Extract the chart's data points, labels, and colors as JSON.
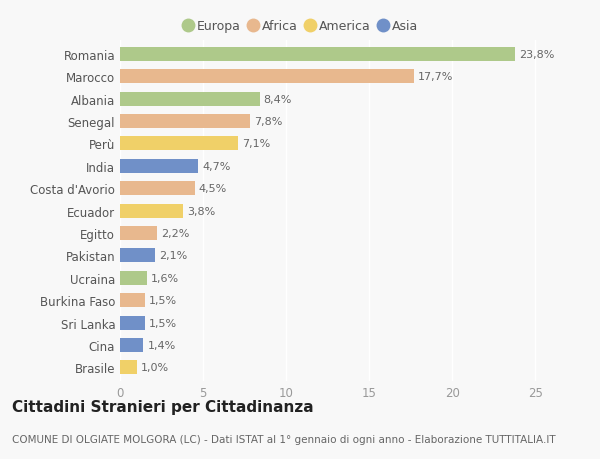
{
  "title": "Cittadini Stranieri per Cittadinanza",
  "subtitle": "COMUNE DI OLGIATE MOLGORA (LC) - Dati ISTAT al 1° gennaio di ogni anno - Elaborazione TUTTITALIA.IT",
  "categories": [
    "Romania",
    "Marocco",
    "Albania",
    "Senegal",
    "Perù",
    "India",
    "Costa d'Avorio",
    "Ecuador",
    "Egitto",
    "Pakistan",
    "Ucraina",
    "Burkina Faso",
    "Sri Lanka",
    "Cina",
    "Brasile"
  ],
  "values": [
    23.8,
    17.7,
    8.4,
    7.8,
    7.1,
    4.7,
    4.5,
    3.8,
    2.2,
    2.1,
    1.6,
    1.5,
    1.5,
    1.4,
    1.0
  ],
  "labels": [
    "23,8%",
    "17,7%",
    "8,4%",
    "7,8%",
    "7,1%",
    "4,7%",
    "4,5%",
    "3,8%",
    "2,2%",
    "2,1%",
    "1,6%",
    "1,5%",
    "1,5%",
    "1,4%",
    "1,0%"
  ],
  "continent": [
    "Europa",
    "Africa",
    "Europa",
    "Africa",
    "America",
    "Asia",
    "Africa",
    "America",
    "Africa",
    "Asia",
    "Europa",
    "Africa",
    "Asia",
    "Asia",
    "America"
  ],
  "colors": {
    "Europa": "#aec98a",
    "Africa": "#e8b88e",
    "America": "#f0d068",
    "Asia": "#7090c8"
  },
  "legend_order": [
    "Europa",
    "Africa",
    "America",
    "Asia"
  ],
  "legend_colors": [
    "#aec98a",
    "#e8b88e",
    "#f0d068",
    "#7090c8"
  ],
  "xlim": [
    0,
    26
  ],
  "xticks": [
    0,
    5,
    10,
    15,
    20,
    25
  ],
  "background_color": "#f8f8f8",
  "bar_height": 0.62,
  "title_fontsize": 11,
  "subtitle_fontsize": 7.5,
  "label_fontsize": 8,
  "tick_fontsize": 8.5,
  "legend_fontsize": 9
}
